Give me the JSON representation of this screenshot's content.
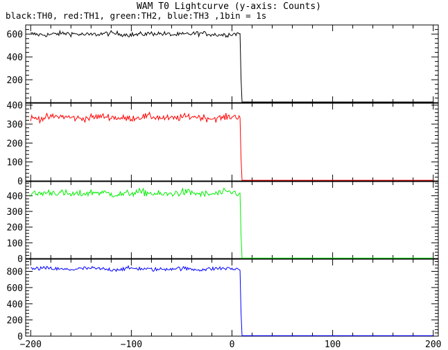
{
  "title": "WAM T0 Lightcurve (y-axis: Counts)",
  "subtitle": "black:TH0, red:TH1, green:TH2, blue:TH3 ,1bin = 1s",
  "chart_data": [
    {
      "type": "line",
      "series_name": "TH0",
      "color": "#000000",
      "xlim": [
        -205,
        205
      ],
      "ylim": [
        0,
        680
      ],
      "yticks": [
        200,
        400,
        600
      ],
      "baseline": 600,
      "noise": 20,
      "drop_at": 8,
      "floor": 5,
      "x_range": [
        -200,
        200
      ]
    },
    {
      "type": "line",
      "series_name": "TH1",
      "color": "#ff0000",
      "xlim": [
        -205,
        205
      ],
      "ylim": [
        0,
        410
      ],
      "yticks": [
        0,
        100,
        200,
        300,
        400
      ],
      "baseline": 335,
      "noise": 17,
      "drop_at": 8,
      "floor": 3,
      "x_range": [
        -200,
        200
      ]
    },
    {
      "type": "line",
      "series_name": "TH2",
      "color": "#00ee00",
      "xlim": [
        -205,
        205
      ],
      "ylim": [
        0,
        490
      ],
      "yticks": [
        0,
        100,
        200,
        300,
        400
      ],
      "baseline": 415,
      "noise": 22,
      "drop_at": 8,
      "floor": 3,
      "x_range": [
        -200,
        200
      ]
    },
    {
      "type": "line",
      "series_name": "TH3",
      "color": "#0000ff",
      "xlim": [
        -205,
        205
      ],
      "ylim": [
        0,
        950
      ],
      "yticks": [
        0,
        200,
        400,
        600,
        800
      ],
      "baseline": 830,
      "noise": 24,
      "drop_at": 8,
      "floor": 5,
      "x_range": [
        -200,
        200
      ]
    }
  ],
  "x_axis": {
    "ticks": [
      -200,
      -100,
      0,
      100,
      200
    ],
    "tick_labels": [
      "−200",
      "−100",
      "0",
      "100",
      "200"
    ]
  }
}
